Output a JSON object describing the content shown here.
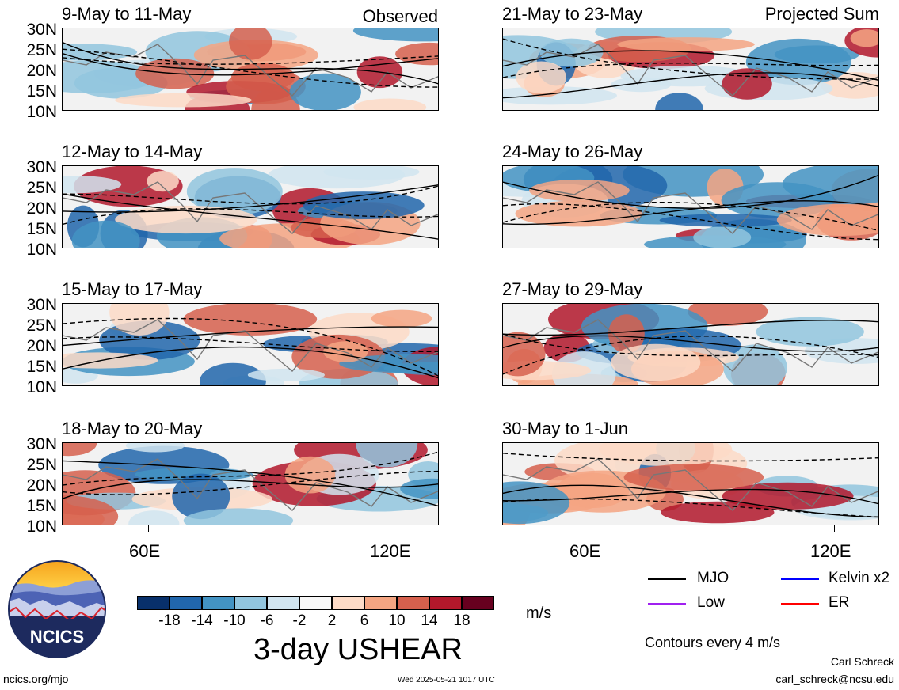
{
  "panels": [
    {
      "title": "9-May to 11-May",
      "tag": "Observed",
      "seed": 3
    },
    {
      "title": "21-May to 23-May",
      "tag": "Projected Sum",
      "seed": 11
    },
    {
      "title": "12-May to 14-May",
      "tag": "",
      "seed": 5
    },
    {
      "title": "24-May to 26-May",
      "tag": "",
      "seed": 13
    },
    {
      "title": "15-May to 17-May",
      "tag": "",
      "seed": 7
    },
    {
      "title": "27-May to 29-May",
      "tag": "",
      "seed": 17
    },
    {
      "title": "18-May to 20-May",
      "tag": "",
      "seed": 9
    },
    {
      "title": "30-May to 1-Jun",
      "tag": "",
      "seed": 19
    }
  ],
  "lat_labels": [
    "30N",
    "25N",
    "20N",
    "15N",
    "10N"
  ],
  "lon_labels": [
    "60E",
    "120E"
  ],
  "colorbar": {
    "colors": [
      "#08306b",
      "#2166ac",
      "#4393c3",
      "#92c5de",
      "#d1e5f0",
      "#f7f7f7",
      "#fddbc7",
      "#f4a582",
      "#d6604d",
      "#b2182b",
      "#67001f"
    ],
    "labels": [
      "-18",
      "-14",
      "-10",
      "-6",
      "-2",
      "2",
      "6",
      "10",
      "14",
      "18"
    ],
    "units": "m/s"
  },
  "legend": [
    {
      "label": "MJO",
      "color": "#000000"
    },
    {
      "label": "Kelvin x2",
      "color": "#0000ff"
    },
    {
      "label": "Low",
      "color": "#a020f0"
    },
    {
      "label": "ER",
      "color": "#ff0000"
    }
  ],
  "title": "3-day USHEAR",
  "contours_note": "Contours every 4 m/s",
  "logo_text": "NCICS",
  "footer": {
    "left": "ncics.org/mjo",
    "center": "Wed 2025-05-21 1017 UTC",
    "author": "Carl Schreck",
    "email": "carl_schreck@ncsu.edu"
  }
}
